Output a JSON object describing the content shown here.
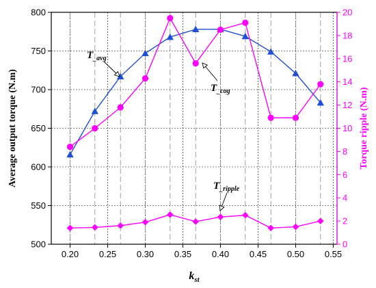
{
  "chart_data": {
    "type": "line",
    "title": "",
    "xlabel": "k",
    "xlabel_sub": "st",
    "ylabel_left": "Average output torque (N.m)",
    "ylabel_right": "Torque ripple (N.m)",
    "xlim": [
      0.175,
      0.555
    ],
    "ylim_left": [
      500,
      800
    ],
    "ylim_right": [
      0,
      20
    ],
    "x_ticks": [
      "0.20",
      "0.25",
      "0.30",
      "0.35",
      "0.40",
      "0.45",
      "0.50",
      "0.55"
    ],
    "y_left_ticks": [
      "500",
      "550",
      "600",
      "650",
      "700",
      "750",
      "800"
    ],
    "y_right_ticks": [
      "0",
      "2",
      "4",
      "6",
      "8",
      "10",
      "12",
      "14",
      "16",
      "18",
      "20"
    ],
    "grid": true,
    "x": [
      0.2,
      0.233,
      0.267,
      0.3,
      0.333,
      0.367,
      0.4,
      0.433,
      0.467,
      0.5,
      0.533
    ],
    "series": [
      {
        "key": "avg",
        "axis": "left",
        "color": "#1f4fd8",
        "marker": "triangle",
        "values": [
          616,
          672,
          717,
          747,
          768,
          778,
          778,
          769,
          749,
          721,
          683
        ]
      },
      {
        "key": "cog",
        "axis": "right",
        "color": "#ff00ff",
        "marker": "circle",
        "values": [
          8.4,
          10.0,
          11.8,
          14.3,
          19.5,
          15.6,
          18.5,
          19.1,
          10.9,
          10.9,
          13.8
        ]
      },
      {
        "key": "ripple",
        "axis": "right",
        "color": "#ff00ff",
        "marker": "diamond",
        "values": [
          1.4,
          1.45,
          1.6,
          1.9,
          2.55,
          1.95,
          2.35,
          2.5,
          1.4,
          1.5,
          2.0
        ]
      }
    ],
    "annotations": [
      {
        "key": "avg",
        "text": "T",
        "sub": "_avg"
      },
      {
        "key": "cog",
        "text": "T",
        "sub": "_cog"
      },
      {
        "key": "ripple",
        "text": "T",
        "sub": "_ripple"
      }
    ]
  }
}
